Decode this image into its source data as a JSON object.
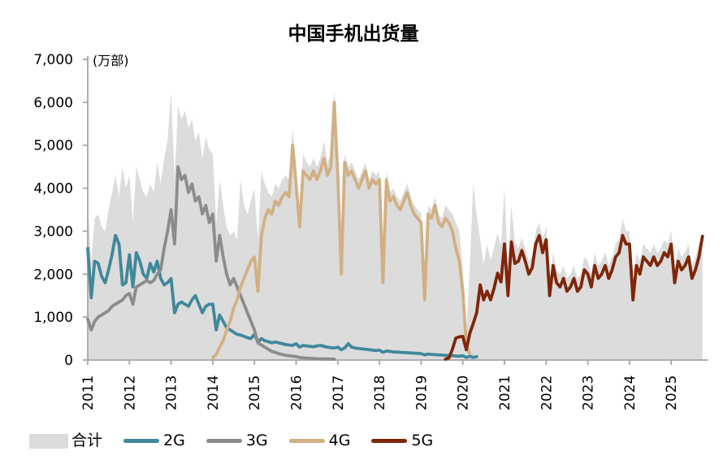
{
  "chart_data": {
    "type": "line",
    "title": "中国手机出货量",
    "unit_label": "(万部)",
    "x_start": "2011-01",
    "x_frequency": "monthly",
    "x_tick_labels": [
      "2011",
      "2012",
      "2013",
      "2014",
      "2015",
      "2016",
      "2017",
      "2018",
      "2019",
      "2020",
      "2021",
      "2022",
      "2023",
      "2024",
      "2025"
    ],
    "ylim": [
      0,
      7000
    ],
    "y_tick_labels": [
      "0",
      "1,000",
      "2,000",
      "3,000",
      "4,000",
      "5,000",
      "6,000",
      "7,000"
    ],
    "grid": false,
    "axis_color": "#A6A6A6",
    "legend_position": "bottom",
    "series": [
      {
        "key": "total",
        "name": "合计",
        "type": "area",
        "color": "#DCDCDC",
        "start": 0,
        "values": [
          3600,
          2300,
          3300,
          3400,
          3100,
          3000,
          3500,
          3900,
          4300,
          3800,
          4500,
          4000,
          4300,
          3200,
          4500,
          4200,
          3900,
          3800,
          4100,
          3900,
          4600,
          4100,
          4700,
          5100,
          6250,
          4200,
          5900,
          5600,
          5800,
          5400,
          5600,
          5100,
          5300,
          4700,
          5200,
          4900,
          4800,
          3200,
          4200,
          3600,
          3100,
          2900,
          3000,
          2800,
          4200,
          3600,
          3400,
          3700,
          4000,
          2800,
          4400,
          4100,
          3900,
          3800,
          4100,
          4000,
          4200,
          4300,
          4200,
          5400,
          4500,
          3400,
          4800,
          4600,
          4500,
          4700,
          4500,
          4700,
          5100,
          4600,
          4800,
          6300,
          4500,
          2200,
          4800,
          4500,
          4600,
          4400,
          4200,
          4400,
          4600,
          4200,
          4400,
          4300,
          4400,
          1900,
          4400,
          3900,
          4000,
          3800,
          3700,
          3900,
          4100,
          3800,
          3600,
          3500,
          3400,
          1500,
          3600,
          3500,
          3800,
          3400,
          3300,
          3600,
          3500,
          3400,
          3200,
          3000,
          2100,
          640,
          2180,
          4100,
          3380,
          2810,
          2230,
          2690,
          2330,
          2620,
          2960,
          2660,
          4000,
          2180,
          3610,
          2750,
          2600,
          2850,
          2600,
          2300,
          2450,
          3000,
          3200,
          2800,
          3100,
          1800,
          2500,
          2100,
          2000,
          2200,
          1900,
          2000,
          2200,
          1900,
          2000,
          2400,
          2300,
          2000,
          2500,
          2200,
          2300,
          2500,
          2200,
          2400,
          2700,
          2800,
          3300,
          3000,
          3000,
          1600,
          2500,
          2300,
          2700,
          2600,
          2500,
          2700,
          2500,
          2600,
          2800,
          2700,
          3000,
          2100,
          2600,
          2400,
          2500,
          2700,
          2200,
          2400,
          2700,
          2930
        ]
      },
      {
        "key": "2g",
        "name": "2G",
        "type": "line",
        "color": "#41889B",
        "start": 0,
        "values": [
          2600,
          1450,
          2300,
          2250,
          1950,
          1800,
          2100,
          2450,
          2900,
          2700,
          1750,
          1800,
          2450,
          1700,
          2500,
          2300,
          2000,
          1900,
          2250,
          2050,
          2300,
          1900,
          1750,
          1800,
          1900,
          1100,
          1300,
          1350,
          1300,
          1250,
          1400,
          1500,
          1300,
          1100,
          1250,
          1300,
          1300,
          700,
          1050,
          900,
          750,
          700,
          650,
          600,
          580,
          550,
          520,
          500,
          600,
          420,
          500,
          450,
          430,
          400,
          420,
          400,
          380,
          360,
          350,
          340,
          380,
          300,
          340,
          330,
          320,
          310,
          330,
          340,
          320,
          300,
          290,
          280,
          300,
          240,
          280,
          380,
          300,
          280,
          270,
          260,
          250,
          240,
          230,
          220,
          230,
          180,
          210,
          200,
          190,
          185,
          180,
          175,
          170,
          165,
          160,
          155,
          150,
          120,
          140,
          130,
          125,
          120,
          115,
          110,
          105,
          100,
          95,
          90,
          100,
          60,
          90,
          60,
          80
        ]
      },
      {
        "key": "3g",
        "name": "3G",
        "type": "line",
        "color": "#8C8C8C",
        "start": 0,
        "values": [
          950,
          700,
          900,
          1000,
          1050,
          1100,
          1150,
          1250,
          1300,
          1350,
          1400,
          1500,
          1550,
          1300,
          1700,
          1750,
          1800,
          1850,
          1800,
          1850,
          2000,
          2100,
          2600,
          3000,
          3500,
          2700,
          4500,
          4200,
          4300,
          3900,
          4100,
          3700,
          3800,
          3400,
          3600,
          3200,
          3400,
          2300,
          2900,
          2400,
          2000,
          1750,
          1900,
          1700,
          1500,
          1300,
          1100,
          900,
          700,
          400,
          350,
          300,
          250,
          200,
          180,
          150,
          130,
          110,
          100,
          90,
          80,
          60,
          50,
          45,
          40,
          35,
          30,
          28,
          26,
          24,
          22,
          20
        ]
      },
      {
        "key": "4g",
        "name": "4G",
        "type": "line",
        "color": "#D2B083",
        "start": 36,
        "values": [
          50,
          130,
          300,
          450,
          700,
          900,
          1200,
          1400,
          1700,
          1900,
          2100,
          2300,
          2400,
          1600,
          2900,
          3300,
          3500,
          3400,
          3700,
          3600,
          3800,
          3900,
          3800,
          5000,
          4100,
          3100,
          4400,
          4300,
          4200,
          4400,
          4200,
          4400,
          4700,
          4300,
          4500,
          6000,
          4300,
          2000,
          4600,
          4300,
          4400,
          4200,
          4000,
          4200,
          4400,
          4000,
          4200,
          4100,
          4200,
          1800,
          4200,
          3700,
          3800,
          3600,
          3500,
          3700,
          3900,
          3600,
          3400,
          3300,
          3200,
          1400,
          3400,
          3300,
          3600,
          3200,
          3100,
          3300,
          3200,
          3000,
          2600,
          2300,
          1600,
          350,
          150
        ]
      },
      {
        "key": "5g",
        "name": "5G",
        "type": "line",
        "color": "#7E2609",
        "start": 103,
        "values": [
          20,
          50,
          250,
          510,
          540,
          550,
          240,
          620,
          850,
          1100,
          1750,
          1400,
          1600,
          1400,
          1670,
          2020,
          1820,
          2700,
          1500,
          2750,
          2250,
          2300,
          2550,
          2300,
          2000,
          2150,
          2700,
          2900,
          2500,
          2800,
          1500,
          2200,
          1800,
          1700,
          1900,
          1600,
          1700,
          1900,
          1600,
          1700,
          2100,
          2000,
          1700,
          2200,
          1900,
          2000,
          2200,
          1900,
          2100,
          2400,
          2500,
          2900,
          2700,
          2700,
          1400,
          2200,
          2000,
          2400,
          2300,
          2200,
          2400,
          2200,
          2300,
          2500,
          2400,
          2700,
          1800,
          2300,
          2100,
          2200,
          2400,
          1900,
          2100,
          2400,
          2880
        ]
      }
    ],
    "legend": [
      {
        "key": "total",
        "label": "合计",
        "swatch": "area",
        "color": "#DCDCDC"
      },
      {
        "key": "2g",
        "label": "2G",
        "swatch": "line",
        "color": "#41889B"
      },
      {
        "key": "3g",
        "label": "3G",
        "swatch": "line",
        "color": "#8C8C8C"
      },
      {
        "key": "4g",
        "label": "4G",
        "swatch": "line",
        "color": "#D2B083"
      },
      {
        "key": "5g",
        "label": "5G",
        "swatch": "line",
        "color": "#7E2609"
      }
    ]
  }
}
